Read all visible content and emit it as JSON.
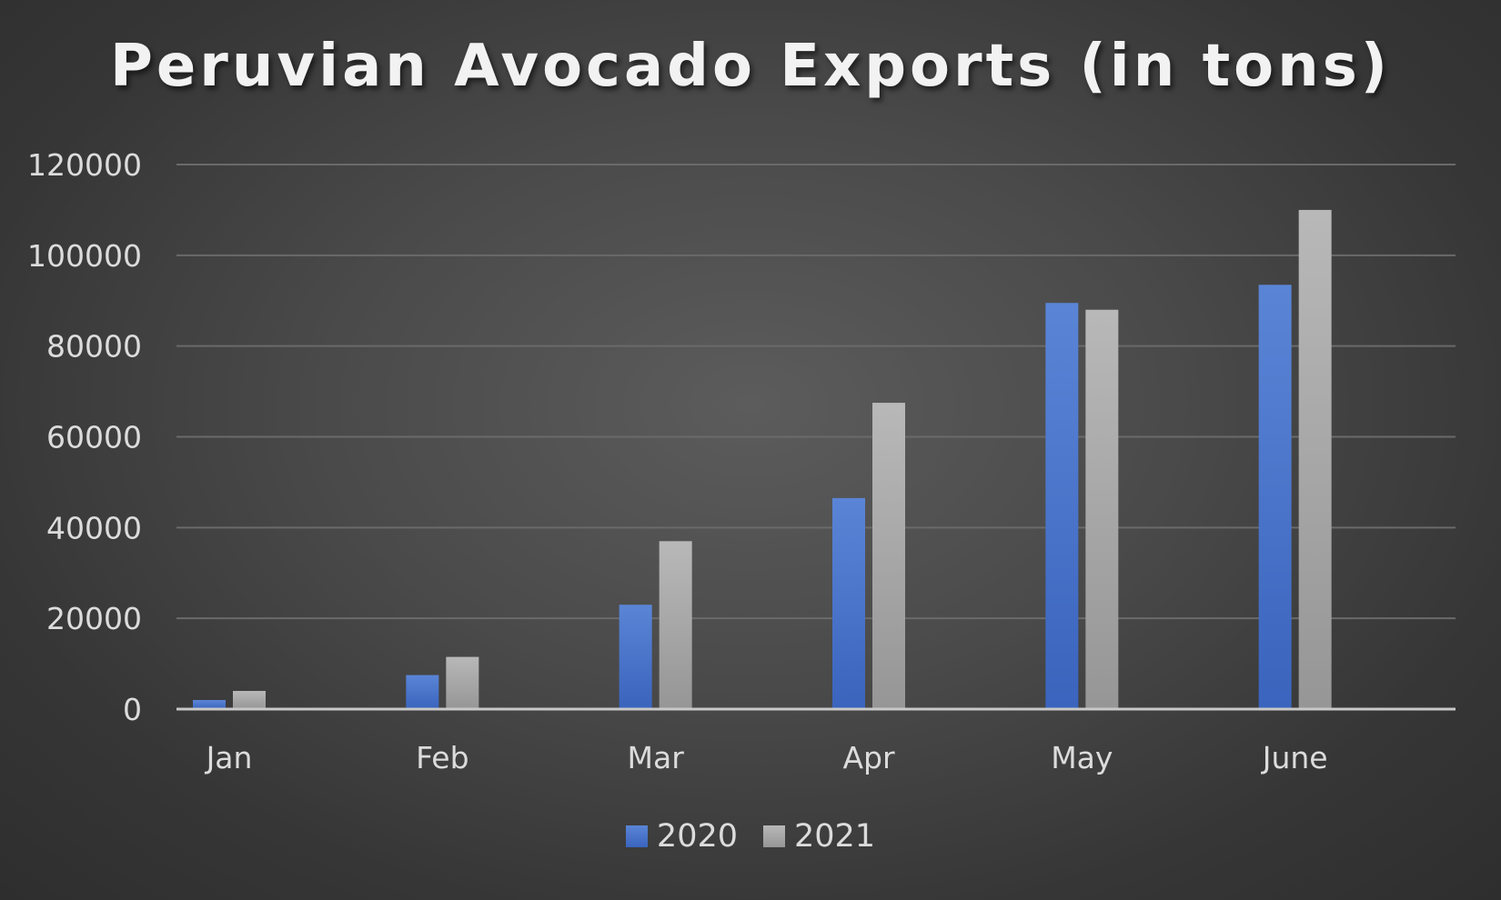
{
  "chart_data": {
    "type": "bar",
    "title": "Peruvian Avocado Exports (in tons)",
    "categories": [
      "Jan",
      "Feb",
      "Mar",
      "Apr",
      "May",
      "June"
    ],
    "series": [
      {
        "name": "2020",
        "color": "#4472c4",
        "values": [
          2000,
          7500,
          23000,
          46500,
          89500,
          93500
        ]
      },
      {
        "name": "2021",
        "color": "#a5a5a5",
        "values": [
          4000,
          11500,
          37000,
          67500,
          88000,
          110000
        ]
      }
    ],
    "ylim": [
      0,
      120000
    ],
    "yticks": [
      "0",
      "20000",
      "40000",
      "60000",
      "80000",
      "100000",
      "120000"
    ],
    "grid": true,
    "legend_position": "bottom"
  }
}
